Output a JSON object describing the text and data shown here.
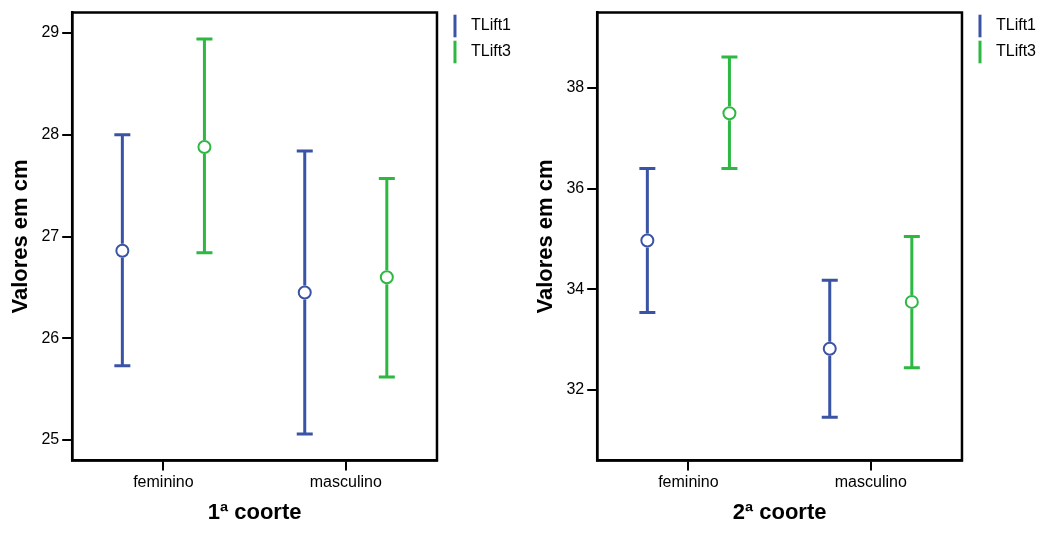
{
  "chart_data": [
    {
      "type": "scatter",
      "xlabel": "1ª coorte",
      "ylabel": "Valores em cm",
      "categories": [
        "feminino",
        "masculino"
      ],
      "ylim": [
        24.8,
        29.2
      ],
      "yticks": [
        25,
        26,
        27,
        28,
        29
      ],
      "grid": false,
      "legend": "top right",
      "marker": "circle",
      "series": [
        {
          "name": "TLift1",
          "color": "#3a53a4",
          "values": [
            26.86,
            26.45
          ],
          "errors": [
            [
              25.73,
              28.0
            ],
            [
              25.06,
              27.84
            ]
          ]
        },
        {
          "name": "TLift3",
          "color": "#2db842",
          "values": [
            27.88,
            26.6
          ],
          "errors": [
            [
              26.84,
              28.94
            ],
            [
              25.62,
              27.57
            ]
          ]
        }
      ]
    },
    {
      "type": "scatter",
      "xlabel": "2ª coorte",
      "ylabel": "Valores em cm",
      "categories": [
        "feminino",
        "masculino"
      ],
      "ylim": [
        30.6,
        39.5
      ],
      "yticks": [
        32,
        34,
        36,
        38
      ],
      "grid": false,
      "legend": "top right",
      "marker": "circle",
      "series": [
        {
          "name": "TLift1",
          "color": "#3a53a4",
          "values": [
            34.97,
            32.82
          ],
          "errors": [
            [
              33.54,
              36.4
            ],
            [
              31.46,
              34.18
            ]
          ]
        },
        {
          "name": "TLift3",
          "color": "#2db842",
          "values": [
            37.5,
            33.75
          ],
          "errors": [
            [
              36.4,
              38.62
            ],
            [
              32.44,
              35.05
            ]
          ]
        }
      ]
    }
  ]
}
